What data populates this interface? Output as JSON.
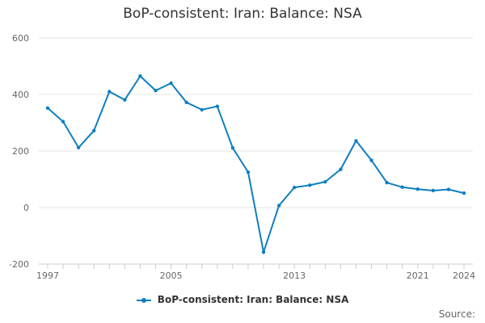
{
  "chart_data": {
    "type": "line",
    "title": "BoP-consistent: Iran: Balance: NSA",
    "xlabel": "",
    "ylabel": "",
    "x": [
      1997,
      1998,
      1999,
      2000,
      2001,
      2002,
      2003,
      2004,
      2005,
      2006,
      2007,
      2008,
      2009,
      2010,
      2011,
      2012,
      2013,
      2014,
      2015,
      2016,
      2017,
      2018,
      2019,
      2020,
      2021,
      2022,
      2023,
      2024
    ],
    "series": [
      {
        "name": "BoP-consistent: Iran: Balance: NSA",
        "color": "#0f7ec1",
        "values": [
          352,
          304,
          212,
          272,
          410,
          381,
          465,
          414,
          440,
          372,
          346,
          358,
          211,
          125,
          -158,
          7,
          71,
          79,
          91,
          135,
          236,
          167,
          88,
          72,
          65,
          60,
          64,
          51
        ]
      }
    ],
    "ylim": [
      -200,
      600
    ],
    "xlim": [
      1997,
      2024
    ],
    "yticks": [
      "600",
      "400",
      "200",
      "0",
      "-200"
    ],
    "xticks": [
      "1997",
      "2005",
      "2013",
      "2021",
      "2024"
    ],
    "grid": true,
    "legend_position": "bottom-center",
    "legend": [
      {
        "label": "BoP-consistent: Iran: Balance: NSA"
      }
    ],
    "source_label": "Source:"
  }
}
